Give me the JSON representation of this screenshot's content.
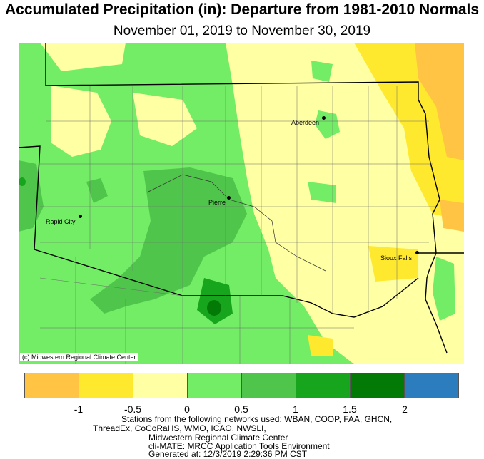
{
  "title": "Accumulated Precipitation (in): Departure from 1981-2010 Normals",
  "subtitle": "November 01, 2019 to November 30, 2019",
  "credit": "(c) Midwestern Regional Climate Center",
  "cities": [
    {
      "name": "Aberdeen"
    },
    {
      "name": "Pierre"
    },
    {
      "name": "Rapid City"
    },
    {
      "name": "Sioux Falls"
    }
  ],
  "legend": {
    "colors": [
      "#ffc444",
      "#ffe92f",
      "#ffffa3",
      "#73ec66",
      "#4fc64b",
      "#17a51e",
      "#047a06",
      "#2b7dbe"
    ],
    "ticks": [
      "-1",
      "-0.5",
      "0",
      "0.5",
      "1",
      "1.5",
      "2"
    ]
  },
  "footer": {
    "line1": "Stations from the following networks used: WBAN, COOP, FAA, GHCN,",
    "line2": "ThreadEx, CoCoRaHS, WMO, ICAO, NWSLI,",
    "line3": "Midwestern Regional Climate Center",
    "line4": "cli-MATE: MRCC Application Tools Environment",
    "line5": "Generated at: 12/3/2019 2:29:36 PM CST"
  }
}
